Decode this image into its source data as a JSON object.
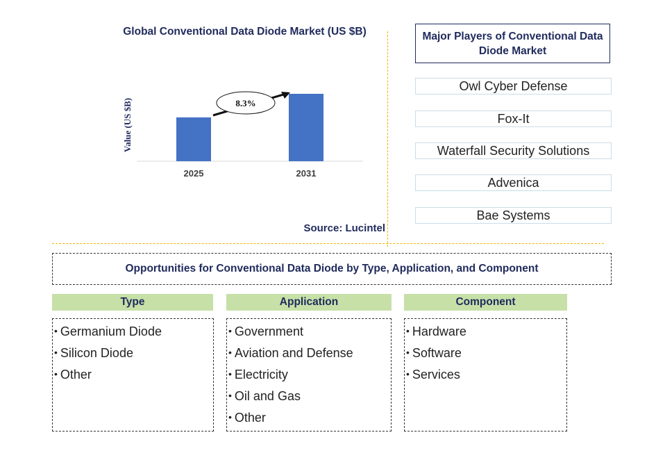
{
  "chart_data": {
    "type": "bar",
    "title": "Global Conventional Data Diode Market (US $B)",
    "ylabel": "Value (US $B)",
    "xlabel": "",
    "categories": [
      "2025",
      "2031"
    ],
    "values": [
      0.65,
      1.0
    ],
    "cagr_label": "8.3%",
    "source": "Source: Lucintel",
    "bar_color": "#4472c4"
  },
  "players": {
    "title": "Major Players of Conventional Data Diode Market",
    "items": [
      "Owl Cyber Defense",
      "Fox-It",
      "Waterfall Security Solutions",
      "Advenica",
      "Bae Systems"
    ]
  },
  "opportunities": {
    "title": "Opportunities for Conventional Data Diode by Type, Application, and Component",
    "categories": [
      {
        "name": "Type",
        "items": [
          "Germanium Diode",
          "Silicon Diode",
          "Other"
        ]
      },
      {
        "name": "Application",
        "items": [
          "Government",
          "Aviation and Defense",
          "Electricity",
          "Oil and Gas",
          "Other"
        ]
      },
      {
        "name": "Component",
        "items": [
          "Hardware",
          "Software",
          "Services"
        ]
      }
    ]
  },
  "colors": {
    "title": "#1f2a5c",
    "category_header_bg": "#c6e0a8",
    "divider": "#f0b400"
  }
}
